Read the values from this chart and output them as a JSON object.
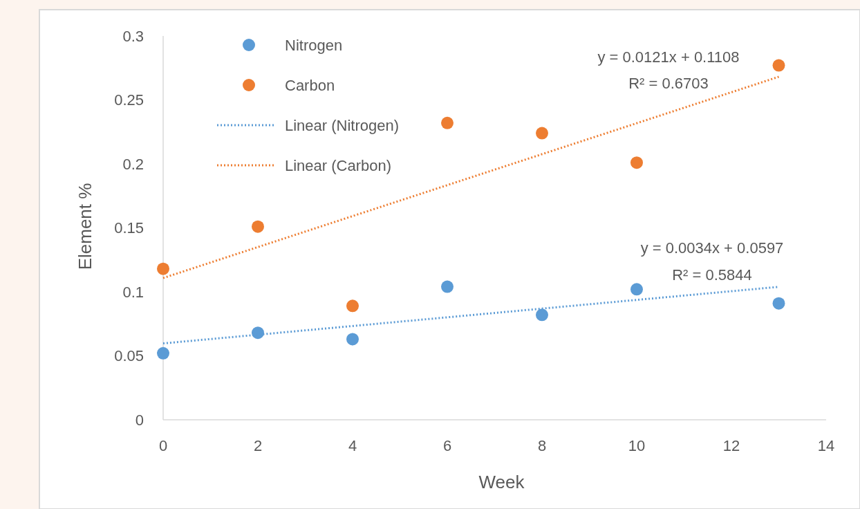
{
  "chart_data": {
    "type": "scatter",
    "xlabel": "Week",
    "ylabel": "Element %",
    "xlim": [
      0,
      14
    ],
    "xticks": [
      0,
      2,
      4,
      6,
      8,
      10,
      12,
      14
    ],
    "ylim": [
      0,
      0.3
    ],
    "yticks": [
      0,
      0.05,
      0.1,
      0.15,
      0.2,
      0.25,
      0.3
    ],
    "grid": false,
    "legend": "top left",
    "marker": "circle",
    "series": [
      {
        "name": "Nitrogen",
        "color": "#5b9bd5",
        "x": [
          0,
          2,
          4,
          6,
          8,
          10,
          13
        ],
        "values": [
          0.052,
          0.068,
          0.063,
          0.104,
          0.082,
          0.102,
          0.091
        ]
      },
      {
        "name": "Carbon",
        "color": "#ed7d31",
        "x": [
          0,
          2,
          4,
          6,
          8,
          10,
          13
        ],
        "values": [
          0.118,
          0.151,
          0.089,
          0.232,
          0.224,
          0.201,
          0.277
        ]
      },
      {
        "name": "Linear (Nitrogen)",
        "type": "line",
        "line_style": "dotted",
        "marker": "none",
        "color": "#5b9bd5",
        "x": [
          0,
          13
        ],
        "values": [
          0.0597,
          0.1039
        ]
      },
      {
        "name": "Linear (Carbon)",
        "type": "line",
        "line_style": "dotted",
        "marker": "none",
        "color": "#ed7d31",
        "x": [
          0,
          13
        ],
        "values": [
          0.1108,
          0.2681
        ]
      }
    ],
    "annotations": [
      "y = 0.0121x + 0.1108",
      "R² = 0.6703",
      "y = 0.0034x + 0.0597",
      "R² = 0.5844"
    ]
  }
}
